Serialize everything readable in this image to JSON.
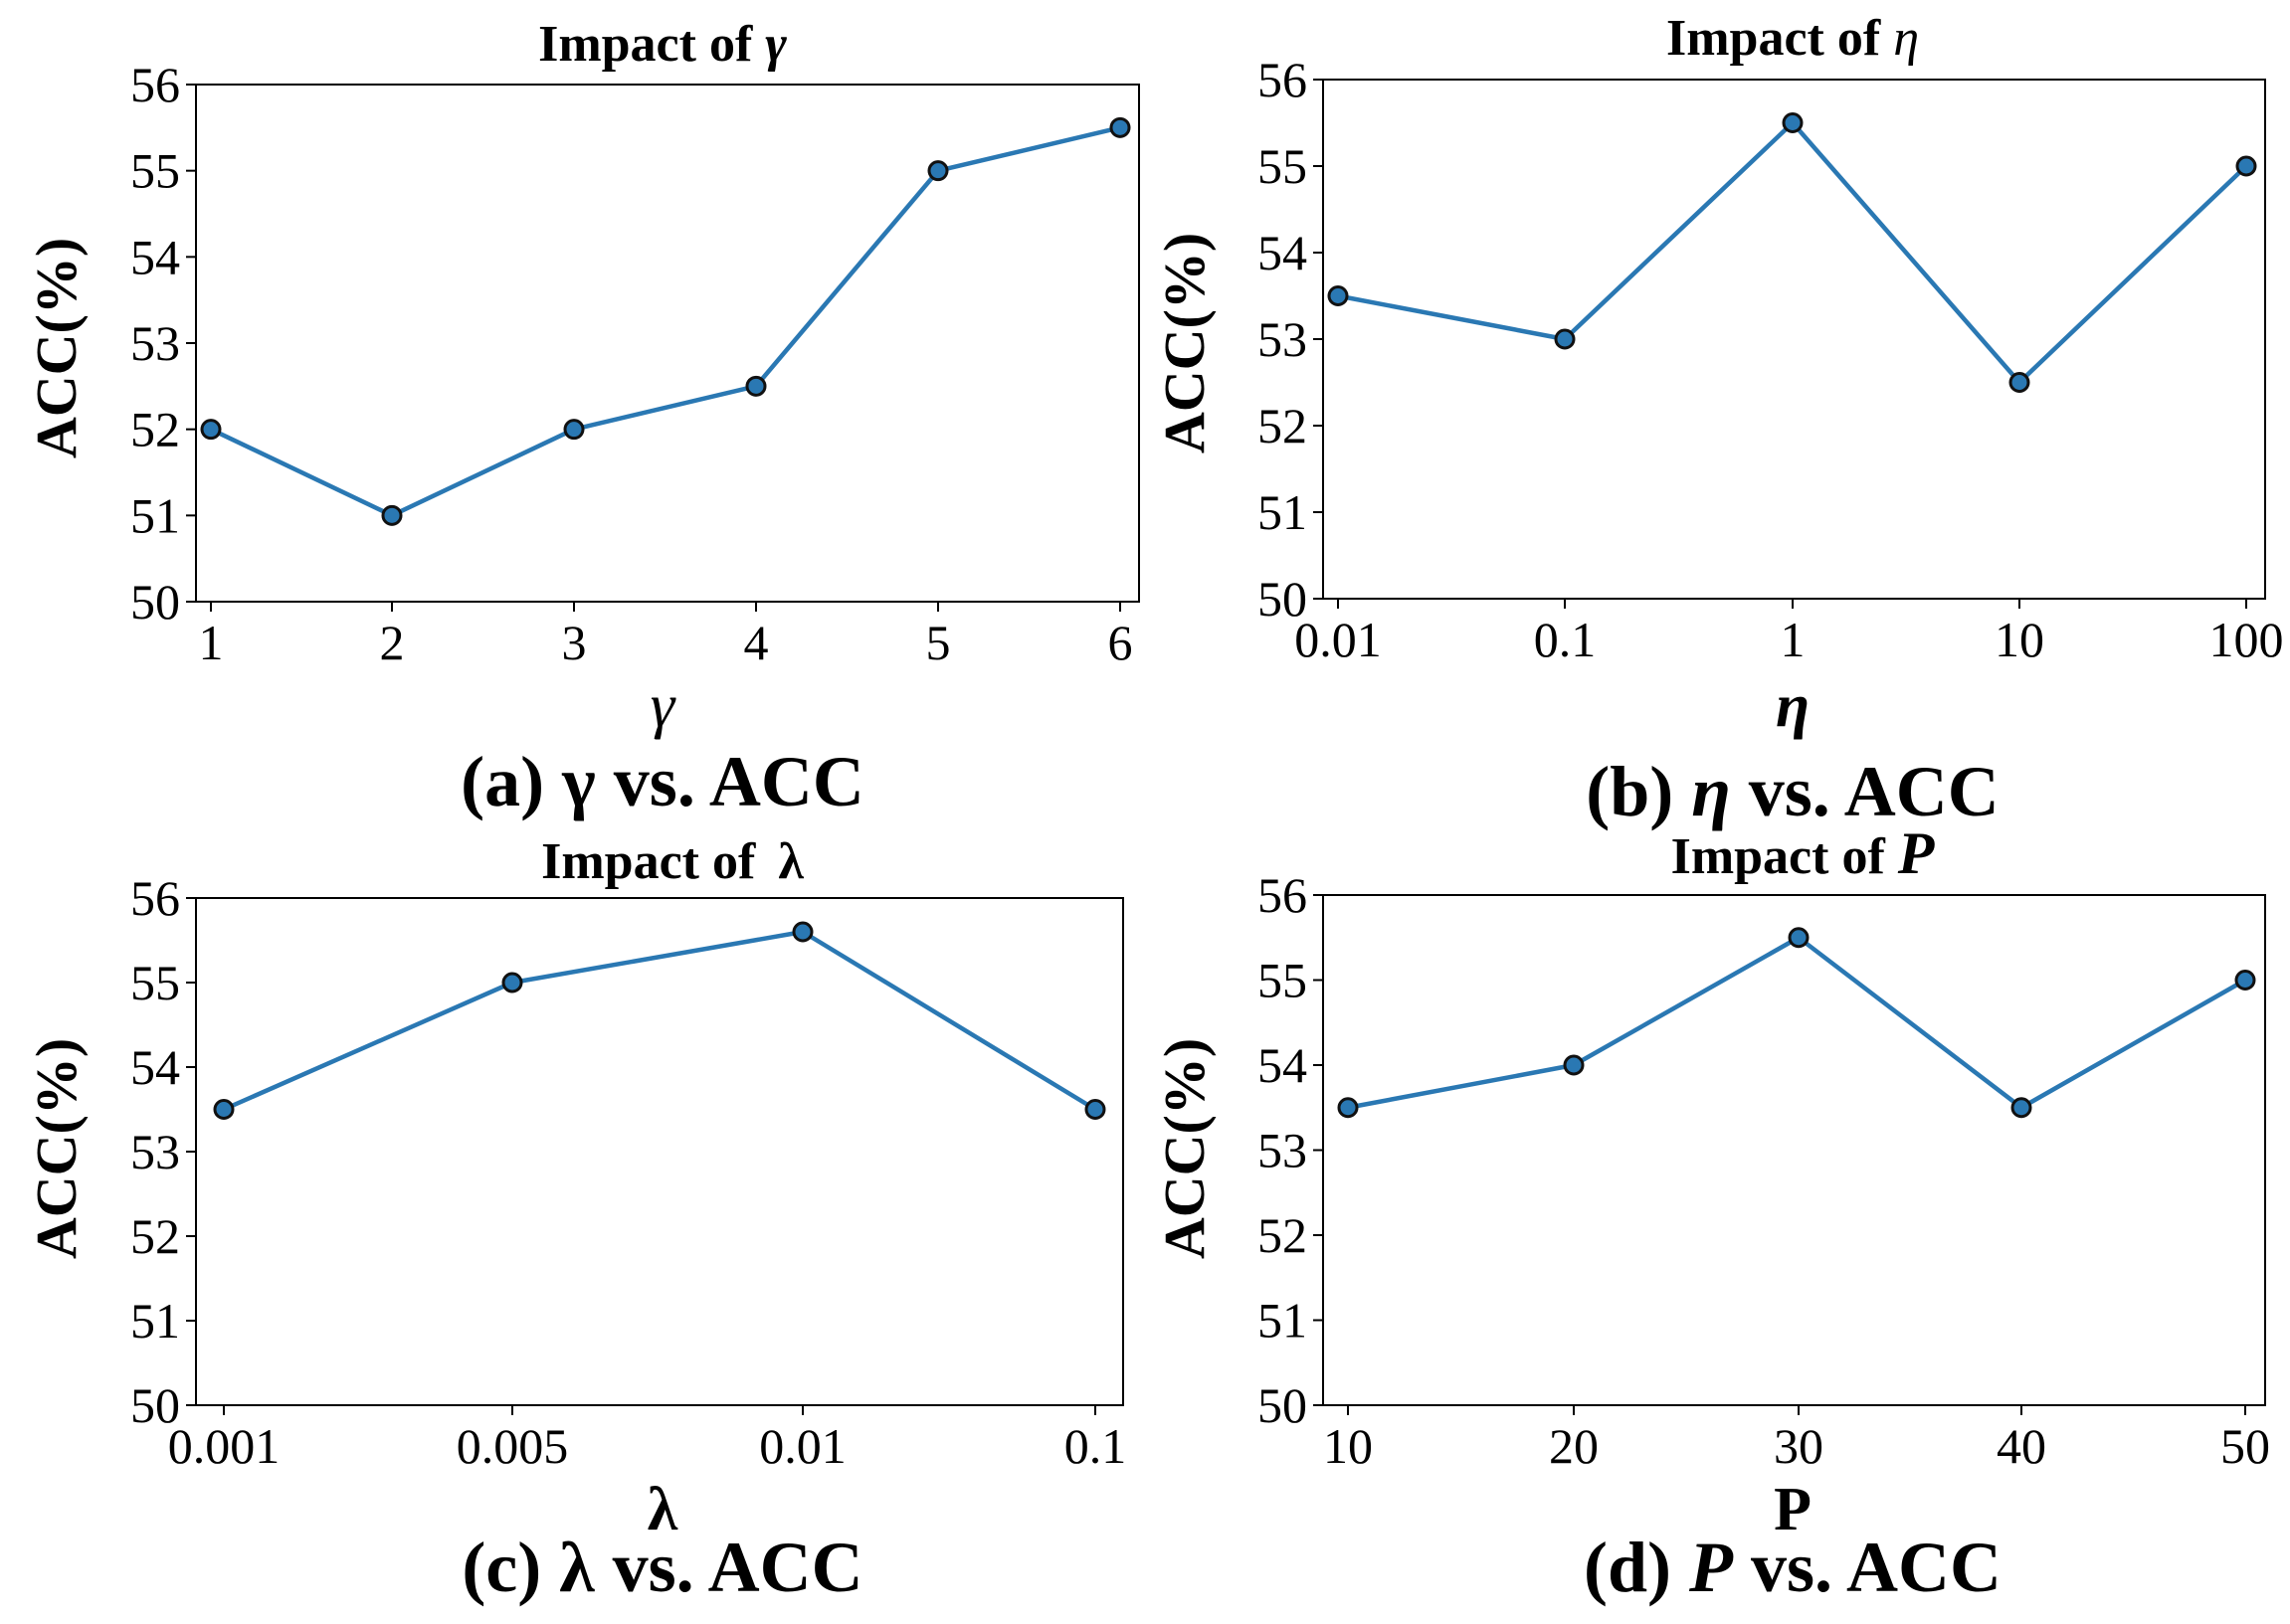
{
  "figure": {
    "panels": [
      {
        "title_prefix": "Impact of",
        "title_symbol": "γ",
        "xlabel": "γ",
        "ylabel": "ACC(%)",
        "caption_prefix": "(a) ",
        "caption_symbol": "γ",
        "caption_suffix": " vs. ACC"
      },
      {
        "title_prefix": "Impact of",
        "title_symbol": "η",
        "xlabel": "η",
        "ylabel": "ACC(%)",
        "caption_prefix": "(b) ",
        "caption_symbol": "η",
        "caption_suffix": " vs. ACC"
      },
      {
        "title_prefix": "Impact of",
        "title_symbol": "λ",
        "xlabel": "λ",
        "ylabel": "ACC(%)",
        "caption_prefix": "(c) ",
        "caption_symbol": "λ",
        "caption_suffix": " vs. ACC"
      },
      {
        "title_prefix": "Impact of",
        "title_symbol": "P",
        "xlabel": "P",
        "ylabel": "ACC(%)",
        "caption_prefix": "(d) ",
        "caption_symbol": "P",
        "caption_suffix": " vs. ACC"
      }
    ]
  },
  "colors": {
    "line": "#2a78b3",
    "marker_edge": "#111111"
  },
  "chart_data": [
    {
      "type": "line",
      "title": "Impact of γ",
      "xlabel": "γ",
      "ylabel": "ACC(%)",
      "categories": [
        "1",
        "2",
        "3",
        "4",
        "5",
        "6"
      ],
      "values": [
        52,
        51,
        52,
        52.5,
        55,
        55.5
      ],
      "ylim": [
        50,
        56
      ],
      "yticks": [
        "50",
        "51",
        "52",
        "53",
        "54",
        "55",
        "56"
      ],
      "grid": false
    },
    {
      "type": "line",
      "title": "Impact of η",
      "xlabel": "η",
      "ylabel": "ACC(%)",
      "categories": [
        "0.01",
        "0.1",
        "1",
        "10",
        "100"
      ],
      "values": [
        53.5,
        53,
        55.5,
        52.5,
        55
      ],
      "ylim": [
        50,
        56
      ],
      "yticks": [
        "50",
        "51",
        "52",
        "53",
        "54",
        "55",
        "56"
      ],
      "grid": false
    },
    {
      "type": "line",
      "title": "Impact of λ",
      "xlabel": "λ",
      "ylabel": "ACC(%)",
      "categories": [
        "0.001",
        "0.005",
        "0.01",
        "0.1"
      ],
      "values": [
        53.5,
        55,
        55.6,
        53.5
      ],
      "ylim": [
        50,
        56
      ],
      "yticks": [
        "50",
        "51",
        "52",
        "53",
        "54",
        "55",
        "56"
      ],
      "grid": false
    },
    {
      "type": "line",
      "title": "Impact of P",
      "xlabel": "P",
      "ylabel": "ACC(%)",
      "categories": [
        "10",
        "20",
        "30",
        "40",
        "50"
      ],
      "values": [
        53.5,
        54,
        55.5,
        53.5,
        55
      ],
      "ylim": [
        50,
        56
      ],
      "yticks": [
        "50",
        "51",
        "52",
        "53",
        "54",
        "55",
        "56"
      ],
      "grid": false
    }
  ]
}
